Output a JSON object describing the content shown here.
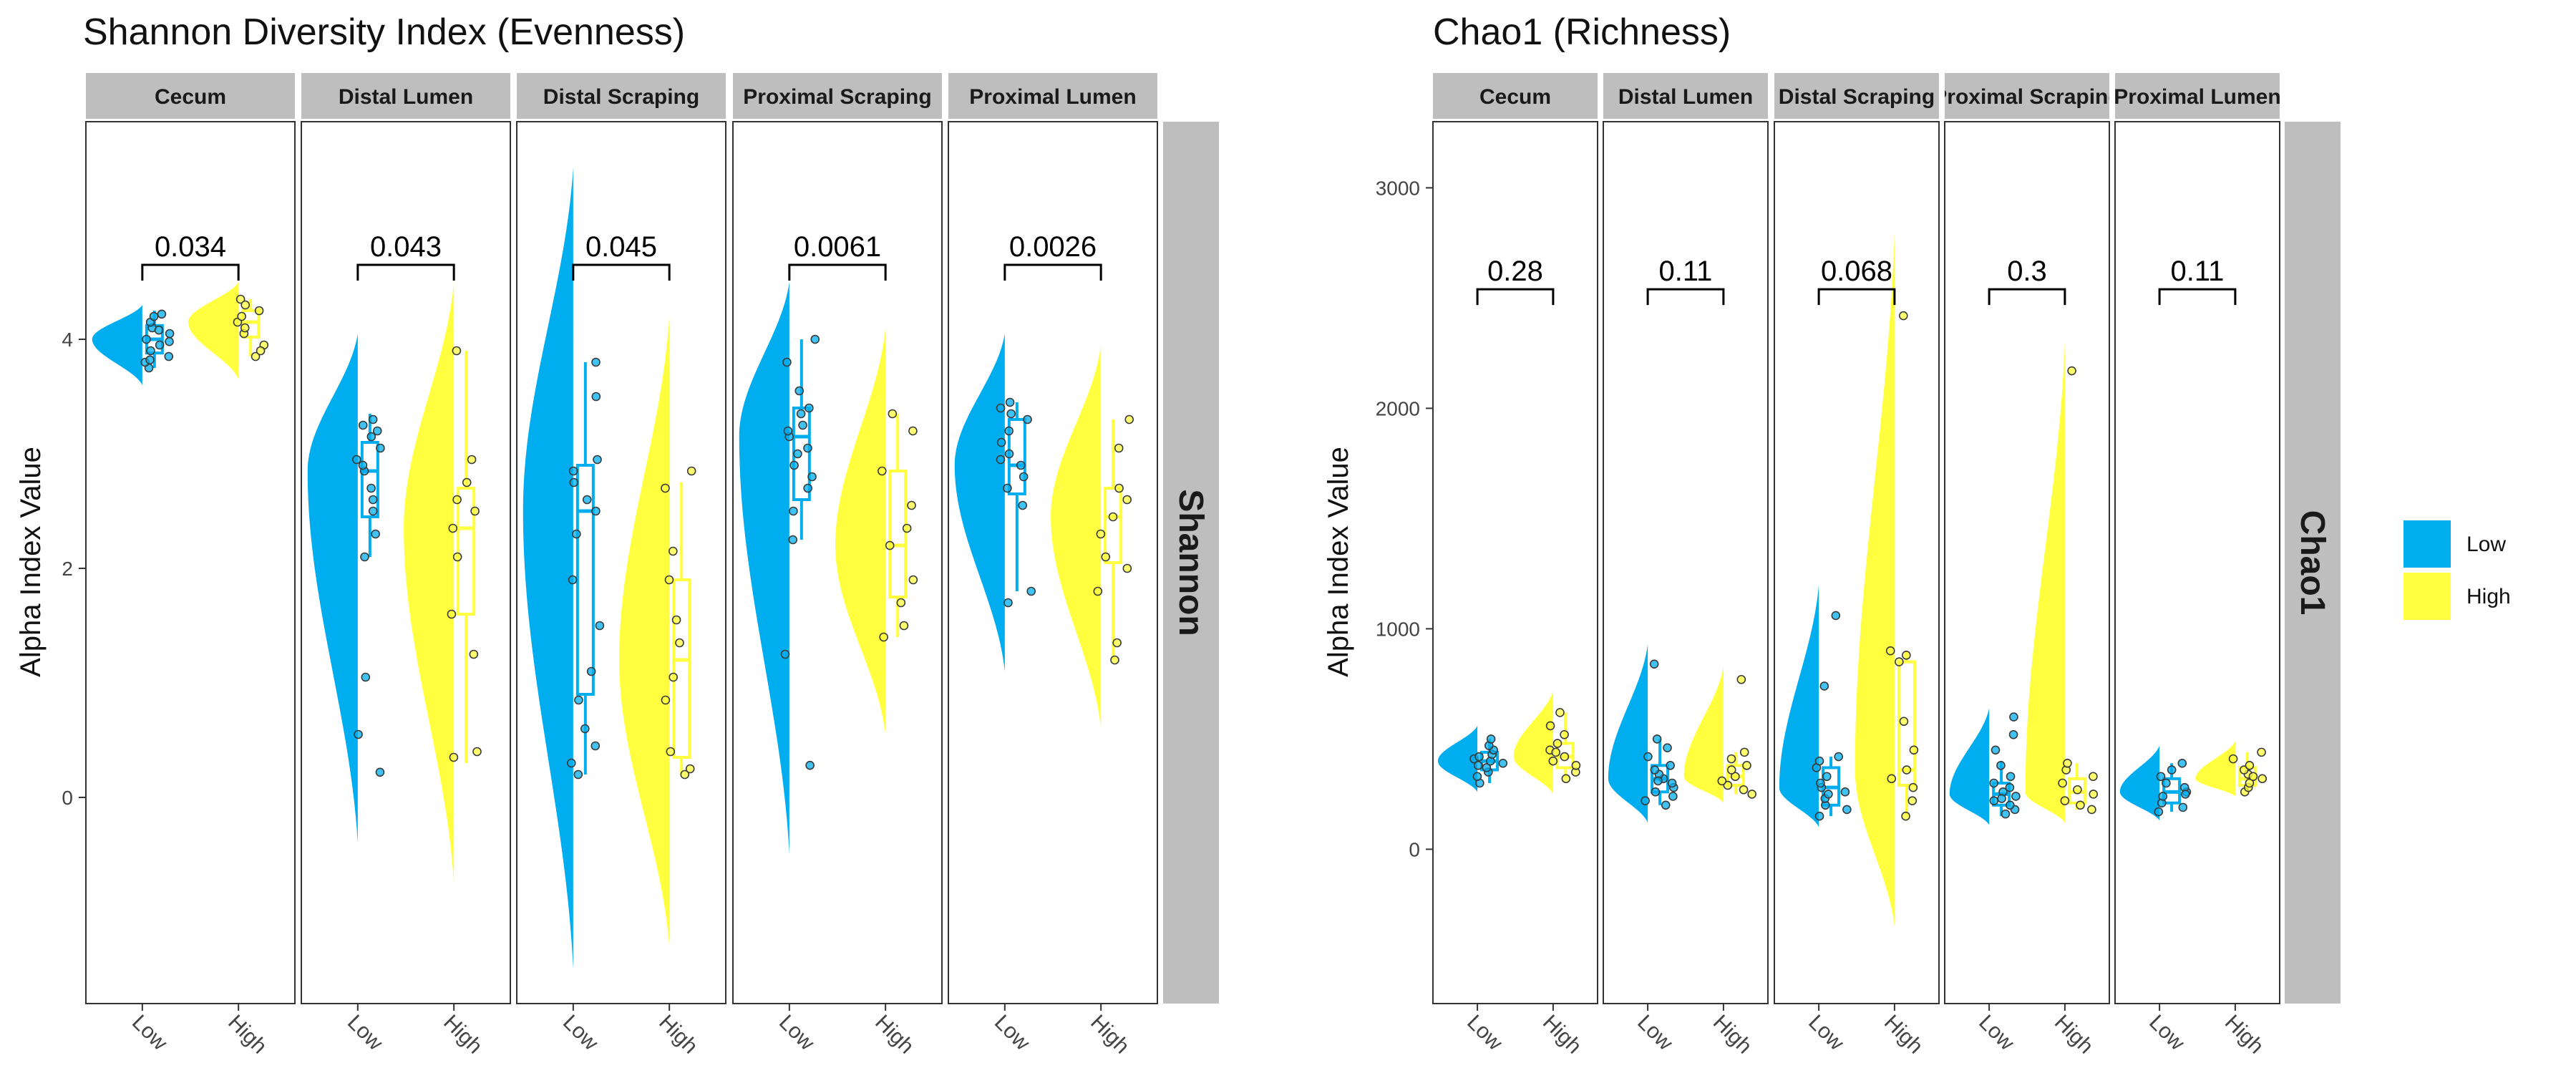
{
  "colors": {
    "Low": "#00AEEF",
    "High": "#FFFF3F",
    "strip": "#BEBEBE",
    "panel_border": "#333333"
  },
  "legend": {
    "entries": [
      {
        "name": "Low",
        "color": "#00AEEF"
      },
      {
        "name": "High",
        "color": "#FFFF3F"
      }
    ]
  },
  "chart_data": [
    {
      "type": "raincloud",
      "title": "Shannon Diversity Index (Evenness)",
      "ylabel": "Alpha Index Value",
      "row_strip": "Shannon",
      "ylim": [
        -1.8,
        5.9
      ],
      "yticks": [
        0,
        2,
        4
      ],
      "x_categories": [
        "Low",
        "High"
      ],
      "facets": [
        {
          "name": "Cecum",
          "pvalue": "0.034",
          "Low": {
            "median": 4.0,
            "q1": 3.88,
            "q3": 4.12,
            "wlo": 3.75,
            "whi": 4.25,
            "dens_min": 3.6,
            "dens_max": 4.3,
            "points": [
              3.75,
              3.8,
              3.85,
              3.9,
              3.95,
              4.0,
              4.05,
              4.1,
              4.15,
              4.2,
              3.98,
              4.22,
              3.82,
              4.08
            ]
          },
          "High": {
            "median": 4.15,
            "q1": 4.02,
            "q3": 4.25,
            "wlo": 3.85,
            "whi": 4.35,
            "dens_min": 3.65,
            "dens_max": 4.5,
            "points": [
              3.85,
              3.95,
              4.05,
              4.15,
              4.2,
              4.25,
              4.35,
              4.1,
              3.9,
              4.3
            ]
          }
        },
        {
          "name": "Distal Lumen",
          "pvalue": "0.043",
          "Low": {
            "median": 2.85,
            "q1": 2.45,
            "q3": 3.1,
            "wlo": 2.1,
            "whi": 3.35,
            "dens_min": -0.4,
            "dens_max": 4.05,
            "points": [
              0.22,
              0.55,
              1.05,
              2.1,
              2.3,
              2.5,
              2.7,
              2.85,
              2.95,
              3.05,
              3.15,
              3.25,
              3.3,
              3.2,
              2.6,
              2.9
            ]
          },
          "High": {
            "median": 2.35,
            "q1": 1.6,
            "q3": 2.7,
            "wlo": 0.3,
            "whi": 3.9,
            "dens_min": -0.75,
            "dens_max": 4.5,
            "points": [
              0.35,
              0.4,
              1.25,
              1.6,
              2.1,
              2.35,
              2.5,
              2.6,
              2.75,
              2.95,
              3.9
            ]
          }
        },
        {
          "name": "Distal Scraping",
          "pvalue": "0.045",
          "Low": {
            "median": 2.5,
            "q1": 0.9,
            "q3": 2.9,
            "wlo": 0.2,
            "whi": 3.8,
            "dens_min": -1.5,
            "dens_max": 5.5,
            "points": [
              0.2,
              0.3,
              0.45,
              0.85,
              1.1,
              1.5,
              1.9,
              2.3,
              2.5,
              2.75,
              2.85,
              2.95,
              3.5,
              3.8,
              0.6,
              2.6
            ]
          },
          "High": {
            "median": 1.2,
            "q1": 0.35,
            "q3": 1.9,
            "wlo": 0.2,
            "whi": 2.75,
            "dens_min": -1.3,
            "dens_max": 4.2,
            "points": [
              0.2,
              0.25,
              0.4,
              0.85,
              1.05,
              1.35,
              1.55,
              1.9,
              2.15,
              2.7,
              2.85
            ]
          }
        },
        {
          "name": "Proximal Scraping",
          "pvalue": "0.0061",
          "Low": {
            "median": 3.15,
            "q1": 2.6,
            "q3": 3.4,
            "wlo": 2.25,
            "whi": 4.0,
            "dens_min": -0.5,
            "dens_max": 4.5,
            "points": [
              0.28,
              1.25,
              2.25,
              2.5,
              2.7,
              2.9,
              3.05,
              3.15,
              3.25,
              3.35,
              3.4,
              3.55,
              3.8,
              4.0,
              3.0,
              2.8,
              3.2
            ]
          },
          "High": {
            "median": 2.2,
            "q1": 1.75,
            "q3": 2.85,
            "wlo": 1.4,
            "whi": 3.35,
            "dens_min": 0.55,
            "dens_max": 4.1,
            "points": [
              1.4,
              1.5,
              1.7,
              1.9,
              2.2,
              2.35,
              2.55,
              2.85,
              3.2,
              3.35
            ]
          }
        },
        {
          "name": "Proximal Lumen",
          "pvalue": "0.0026",
          "Low": {
            "median": 2.9,
            "q1": 2.65,
            "q3": 3.3,
            "wlo": 1.8,
            "whi": 3.45,
            "dens_min": 1.1,
            "dens_max": 4.05,
            "points": [
              1.7,
              1.8,
              2.55,
              2.7,
              2.8,
              2.9,
              3.0,
              3.1,
              3.2,
              3.3,
              3.35,
              3.4,
              3.45,
              2.95
            ]
          },
          "High": {
            "median": 2.45,
            "q1": 2.05,
            "q3": 2.7,
            "wlo": 1.2,
            "whi": 3.3,
            "dens_min": 0.6,
            "dens_max": 3.95,
            "points": [
              1.2,
              1.35,
              1.8,
              2.0,
              2.1,
              2.3,
              2.45,
              2.6,
              2.7,
              3.05,
              3.3
            ]
          }
        }
      ]
    },
    {
      "type": "raincloud",
      "title": "Chao1 (Richness)",
      "ylabel": "Alpha Index Value",
      "row_strip": "Chao1",
      "ylim": [
        -700,
        3300
      ],
      "yticks": [
        0,
        1000,
        2000,
        3000
      ],
      "x_categories": [
        "Low",
        "High"
      ],
      "facets": [
        {
          "name": "Cecum",
          "pvalue": "0.28",
          "Low": {
            "median": 400,
            "q1": 360,
            "q3": 440,
            "wlo": 300,
            "whi": 500,
            "dens_min": 260,
            "dens_max": 560,
            "points": [
              300,
              330,
              350,
              370,
              390,
              400,
              410,
              430,
              450,
              470,
              500,
              380,
              420
            ]
          },
          "High": {
            "median": 420,
            "q1": 370,
            "q3": 480,
            "wlo": 320,
            "whi": 620,
            "dens_min": 250,
            "dens_max": 720,
            "points": [
              320,
              350,
              380,
              400,
              420,
              450,
              480,
              520,
              560,
              620,
              440
            ]
          }
        },
        {
          "name": "Distal Lumen",
          "pvalue": "0.11",
          "Low": {
            "median": 320,
            "q1": 260,
            "q3": 380,
            "wlo": 200,
            "whi": 500,
            "dens_min": 120,
            "dens_max": 930,
            "points": [
              200,
              220,
              240,
              260,
              280,
              300,
              320,
              340,
              360,
              380,
              420,
              460,
              500,
              840,
              310
            ]
          },
          "High": {
            "median": 330,
            "q1": 290,
            "q3": 380,
            "wlo": 250,
            "whi": 440,
            "dens_min": 210,
            "dens_max": 830,
            "points": [
              250,
              270,
              290,
              310,
              330,
              360,
              380,
              410,
              440,
              770
            ]
          }
        },
        {
          "name": "Distal Scraping",
          "pvalue": "0.068",
          "Low": {
            "median": 280,
            "q1": 200,
            "q3": 370,
            "wlo": 150,
            "whi": 420,
            "dens_min": 100,
            "dens_max": 1200,
            "points": [
              150,
              180,
              200,
              230,
              260,
              280,
              300,
              330,
              370,
              400,
              420,
              740,
              1060,
              250
            ]
          },
          "High": {
            "median": 360,
            "q1": 290,
            "q3": 850,
            "wlo": 150,
            "whi": 900,
            "dens_min": -350,
            "dens_max": 2800,
            "points": [
              150,
              220,
              280,
              320,
              360,
              450,
              580,
              850,
              880,
              900,
              2420
            ]
          }
        },
        {
          "name": "Proximal Scraping",
          "pvalue": "0.3",
          "Low": {
            "median": 250,
            "q1": 200,
            "q3": 300,
            "wlo": 150,
            "whi": 400,
            "dens_min": 110,
            "dens_max": 640,
            "points": [
              160,
              180,
              200,
              220,
              240,
              260,
              280,
              300,
              330,
              380,
              450,
              520,
              600,
              230
            ]
          },
          "High": {
            "median": 260,
            "q1": 210,
            "q3": 320,
            "wlo": 180,
            "whi": 390,
            "dens_min": 120,
            "dens_max": 2300,
            "points": [
              180,
              200,
              220,
              250,
              270,
              300,
              330,
              360,
              390,
              2170
            ]
          }
        },
        {
          "name": "Proximal Lumen",
          "pvalue": "0.11",
          "Low": {
            "median": 260,
            "q1": 210,
            "q3": 320,
            "wlo": 170,
            "whi": 390,
            "dens_min": 130,
            "dens_max": 470,
            "points": [
              170,
              190,
              210,
              240,
              260,
              280,
              300,
              330,
              360,
              390,
              250
            ]
          },
          "High": {
            "median": 320,
            "q1": 290,
            "q3": 370,
            "wlo": 260,
            "whi": 440,
            "dens_min": 240,
            "dens_max": 490,
            "points": [
              260,
              280,
              300,
              320,
              340,
              360,
              380,
              410,
              440,
              330
            ]
          }
        }
      ]
    }
  ]
}
